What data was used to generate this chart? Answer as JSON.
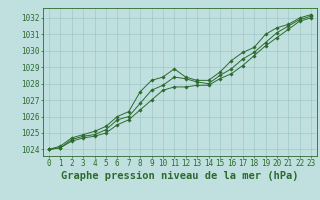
{
  "title": "Graphe pression niveau de la mer (hPa)",
  "hours": [
    0,
    1,
    2,
    3,
    4,
    5,
    6,
    7,
    8,
    9,
    10,
    11,
    12,
    13,
    14,
    15,
    16,
    17,
    18,
    19,
    20,
    21,
    22,
    23
  ],
  "line1": [
    1024.0,
    1024.2,
    1024.7,
    1024.9,
    1025.1,
    1025.4,
    1026.0,
    1026.3,
    1027.5,
    1028.2,
    1028.4,
    1028.9,
    1028.4,
    1028.2,
    1028.2,
    1028.7,
    1029.4,
    1029.9,
    1030.2,
    1031.0,
    1031.4,
    1031.6,
    1032.0,
    1032.2
  ],
  "line2": [
    1024.0,
    1024.1,
    1024.6,
    1024.8,
    1024.9,
    1025.2,
    1025.8,
    1026.0,
    1026.8,
    1027.6,
    1027.9,
    1028.4,
    1028.3,
    1028.1,
    1028.0,
    1028.5,
    1028.9,
    1029.5,
    1029.9,
    1030.5,
    1031.1,
    1031.5,
    1031.9,
    1032.1
  ],
  "line3": [
    1024.0,
    1024.1,
    1024.5,
    1024.7,
    1024.8,
    1025.0,
    1025.5,
    1025.8,
    1026.4,
    1027.0,
    1027.6,
    1027.8,
    1027.8,
    1027.9,
    1027.9,
    1028.3,
    1028.6,
    1029.1,
    1029.7,
    1030.3,
    1030.8,
    1031.3,
    1031.8,
    1032.0
  ],
  "line_color": "#2d6a2d",
  "bg_color": "#c0e0e0",
  "grid_color": "#a0c8c8",
  "axis_color": "#2d6a2d",
  "ylim_min": 1023.6,
  "ylim_max": 1032.6,
  "yticks": [
    1024,
    1025,
    1026,
    1027,
    1028,
    1029,
    1030,
    1031,
    1032
  ],
  "tick_fontsize": 5.5,
  "title_fontsize": 7.5
}
